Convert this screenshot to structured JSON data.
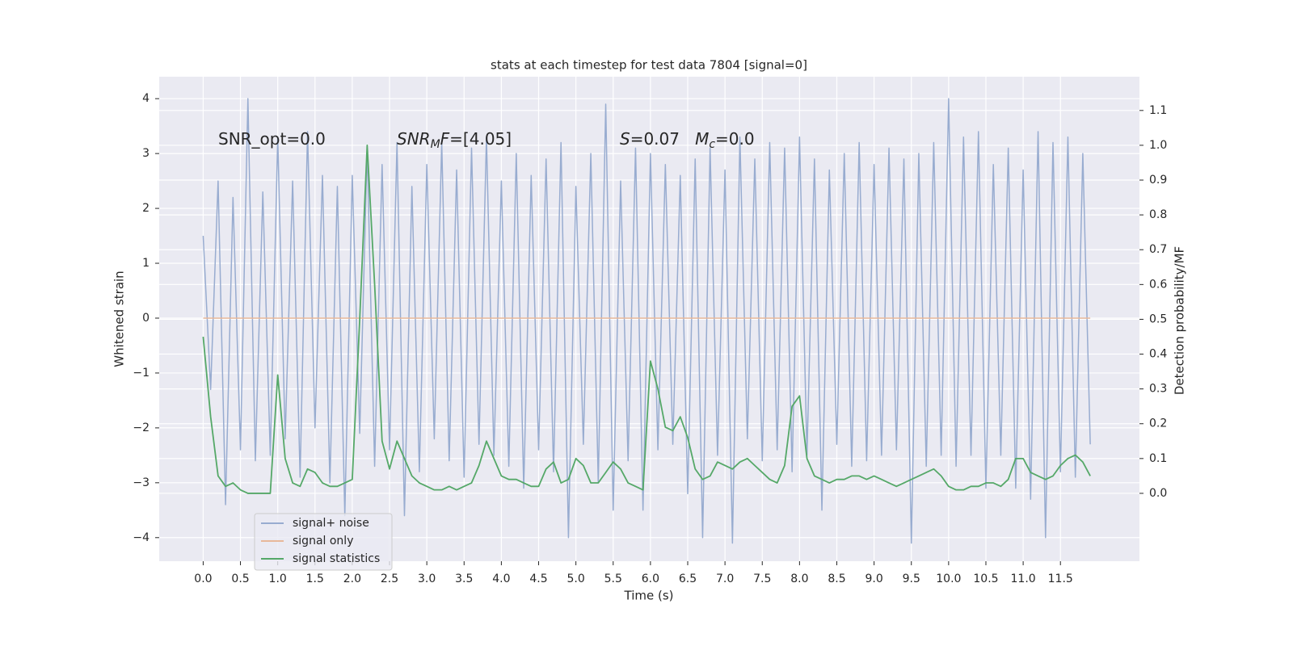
{
  "chart_data": {
    "type": "line",
    "title": "stats at each timestep for test data 7804 [signal=0]",
    "xlabel": "Time (s)",
    "ylabel": "Whitened strain",
    "y2label": "Detection probability/MF",
    "annotations": [
      [
        {
          "text": "SNR_opt=0.0"
        }
      ],
      [
        {
          "text": "SNR",
          "italic": true
        },
        {
          "text": "M",
          "italic": true,
          "sub": true
        },
        {
          "text": "F",
          "italic": true
        },
        {
          "text": "=[4.05]"
        }
      ],
      [
        {
          "text": "S",
          "italic": true
        },
        {
          "text": "=0.07   "
        },
        {
          "text": "M",
          "italic": true
        },
        {
          "text": "c",
          "italic": true,
          "sub": true
        },
        {
          "text": "=0.0"
        }
      ]
    ],
    "x": [
      0,
      0.1,
      0.2,
      0.3,
      0.4,
      0.5,
      0.6,
      0.7,
      0.8,
      0.9,
      1,
      1.1,
      1.2,
      1.3,
      1.4,
      1.5,
      1.6,
      1.7,
      1.8,
      1.9,
      2,
      2.1,
      2.2,
      2.3,
      2.4,
      2.5,
      2.6,
      2.7,
      2.8,
      2.9,
      3,
      3.1,
      3.2,
      3.3,
      3.4,
      3.5,
      3.6,
      3.7,
      3.8,
      3.9,
      4,
      4.1,
      4.2,
      4.3,
      4.4,
      4.5,
      4.6,
      4.7,
      4.8,
      4.9,
      5,
      5.1,
      5.2,
      5.3,
      5.4,
      5.5,
      5.6,
      5.7,
      5.8,
      5.9,
      6,
      6.1,
      6.2,
      6.3,
      6.4,
      6.5,
      6.6,
      6.7,
      6.8,
      6.9,
      7,
      7.1,
      7.2,
      7.3,
      7.4,
      7.5,
      7.6,
      7.7,
      7.8,
      7.9,
      8,
      8.1,
      8.2,
      8.3,
      8.4,
      8.5,
      8.6,
      8.7,
      8.8,
      8.9,
      9,
      9.1,
      9.2,
      9.3,
      9.4,
      9.5,
      9.6,
      9.7,
      9.8,
      9.9,
      10,
      10.1,
      10.2,
      10.3,
      10.4,
      10.5,
      10.6,
      10.7,
      10.8,
      10.9,
      11,
      11.1,
      11.2,
      11.3,
      11.4,
      11.5,
      11.6,
      11.7,
      11.8,
      11.9
    ],
    "series": [
      {
        "name": "signal+ noise",
        "color": "#98acd0",
        "axis": "y",
        "values": [
          1.5,
          -1.3,
          2.5,
          -3.4,
          2.2,
          -2.4,
          4.0,
          -2.6,
          2.3,
          -2.5,
          3.3,
          -2.2,
          2.5,
          -2.9,
          3.4,
          -2.0,
          2.6,
          -3.0,
          2.4,
          -3.6,
          2.6,
          -2.1,
          3.1,
          -2.7,
          2.8,
          -2.4,
          3.2,
          -3.6,
          2.4,
          -2.8,
          2.8,
          -2.2,
          3.2,
          -2.6,
          2.7,
          -2.9,
          3.1,
          -2.3,
          3.3,
          -2.5,
          2.5,
          -2.7,
          3.0,
          -3.1,
          2.6,
          -2.4,
          2.9,
          -2.8,
          3.2,
          -4.0,
          2.4,
          -2.3,
          3.0,
          -3.0,
          3.9,
          -3.5,
          2.5,
          -2.6,
          3.1,
          -3.5,
          3.0,
          -2.4,
          2.8,
          -2.3,
          2.6,
          -3.2,
          2.9,
          -4.0,
          3.1,
          -2.5,
          2.7,
          -4.1,
          3.3,
          -2.2,
          2.9,
          -2.6,
          3.2,
          -2.4,
          3.1,
          -2.8,
          3.3,
          -2.5,
          2.9,
          -3.5,
          2.7,
          -2.3,
          3.0,
          -2.7,
          3.2,
          -2.6,
          2.8,
          -2.5,
          3.1,
          -2.4,
          2.9,
          -4.1,
          3.0,
          -2.7,
          3.2,
          -2.5,
          4.0,
          -2.7,
          3.3,
          -2.5,
          3.4,
          -3.1,
          2.8,
          -2.5,
          3.1,
          -3.1,
          2.7,
          -3.3,
          3.4,
          -4.0,
          3.2,
          -2.8,
          3.3,
          -2.9,
          3.0,
          -2.3
        ]
      },
      {
        "name": "signal only",
        "color": "#e8b89a",
        "axis": "y",
        "values": [
          0,
          0,
          0,
          0,
          0,
          0,
          0,
          0,
          0,
          0,
          0,
          0,
          0,
          0,
          0,
          0,
          0,
          0,
          0,
          0,
          0,
          0,
          0,
          0,
          0,
          0,
          0,
          0,
          0,
          0,
          0,
          0,
          0,
          0,
          0,
          0,
          0,
          0,
          0,
          0,
          0,
          0,
          0,
          0,
          0,
          0,
          0,
          0,
          0,
          0,
          0,
          0,
          0,
          0,
          0,
          0,
          0,
          0,
          0,
          0,
          0,
          0,
          0,
          0,
          0,
          0,
          0,
          0,
          0,
          0,
          0,
          0,
          0,
          0,
          0,
          0,
          0,
          0,
          0,
          0,
          0,
          0,
          0,
          0,
          0,
          0,
          0,
          0,
          0,
          0,
          0,
          0,
          0,
          0,
          0,
          0,
          0,
          0,
          0,
          0,
          0,
          0,
          0,
          0,
          0,
          0,
          0,
          0,
          0,
          0,
          0,
          0,
          0,
          0,
          0,
          0,
          0,
          0,
          0,
          0
        ]
      },
      {
        "name": "signal statistics",
        "color": "#55a868",
        "axis": "y2",
        "values": [
          0.45,
          0.22,
          0.05,
          0.02,
          0.03,
          0.01,
          0,
          0,
          0,
          0,
          0.34,
          0.1,
          0.03,
          0.02,
          0.07,
          0.06,
          0.03,
          0.02,
          0.02,
          0.03,
          0.04,
          0.5,
          1.0,
          0.6,
          0.15,
          0.07,
          0.15,
          0.1,
          0.05,
          0.03,
          0.02,
          0.01,
          0.01,
          0.02,
          0.01,
          0.02,
          0.03,
          0.08,
          0.15,
          0.1,
          0.05,
          0.04,
          0.04,
          0.03,
          0.02,
          0.02,
          0.07,
          0.09,
          0.03,
          0.04,
          0.1,
          0.08,
          0.03,
          0.03,
          0.06,
          0.09,
          0.07,
          0.03,
          0.02,
          0.01,
          0.38,
          0.3,
          0.19,
          0.18,
          0.22,
          0.16,
          0.07,
          0.04,
          0.05,
          0.09,
          0.08,
          0.07,
          0.09,
          0.1,
          0.08,
          0.06,
          0.04,
          0.03,
          0.08,
          0.25,
          0.28,
          0.1,
          0.05,
          0.04,
          0.03,
          0.04,
          0.04,
          0.05,
          0.05,
          0.04,
          0.05,
          0.04,
          0.03,
          0.02,
          0.03,
          0.04,
          0.05,
          0.06,
          0.07,
          0.05,
          0.02,
          0.01,
          0.01,
          0.02,
          0.02,
          0.03,
          0.03,
          0.02,
          0.04,
          0.1,
          0.1,
          0.06,
          0.05,
          0.04,
          0.05,
          0.08,
          0.1,
          0.11,
          0.09,
          0.05
        ]
      }
    ],
    "xlim": [
      -0.59,
      12.56
    ],
    "xticks": [
      {
        "value": 0,
        "label": "0.0"
      },
      0.5,
      {
        "value": 1,
        "label": "1.0"
      },
      1.5,
      {
        "value": 2,
        "label": "2.0"
      },
      2.5,
      {
        "value": 3,
        "label": "3.0"
      },
      3.5,
      {
        "value": 4,
        "label": "4.0"
      },
      4.5,
      {
        "value": 5,
        "label": "5.0"
      },
      5.5,
      {
        "value": 6,
        "label": "6.0"
      },
      6.5,
      {
        "value": 7,
        "label": "7.0"
      },
      7.5,
      {
        "value": 8,
        "label": "8.0"
      },
      8.5,
      {
        "value": 9,
        "label": "9.0"
      },
      9.5,
      {
        "value": 10,
        "label": "10.0"
      },
      10.5,
      {
        "value": 11,
        "label": "11.0"
      },
      11.5
    ],
    "ylim": [
      -4.43,
      4.4
    ],
    "yticks": [
      {
        "value": -4,
        "label": "−4"
      },
      {
        "value": -3,
        "label": "−3"
      },
      {
        "value": -2,
        "label": "−2"
      },
      {
        "value": -1,
        "label": "−1"
      },
      0,
      1,
      2,
      3,
      4
    ],
    "y2lim": [
      -0.195,
      1.197
    ],
    "y2ticks": [
      {
        "value": 0,
        "label": "0.0"
      },
      0.1,
      0.2,
      0.3,
      0.4,
      0.5,
      0.6,
      0.7,
      0.8,
      0.9,
      {
        "value": 1,
        "label": "1.0"
      },
      1.1
    ],
    "grid": true,
    "background": "#eaeaf2",
    "legend": "lower left"
  }
}
